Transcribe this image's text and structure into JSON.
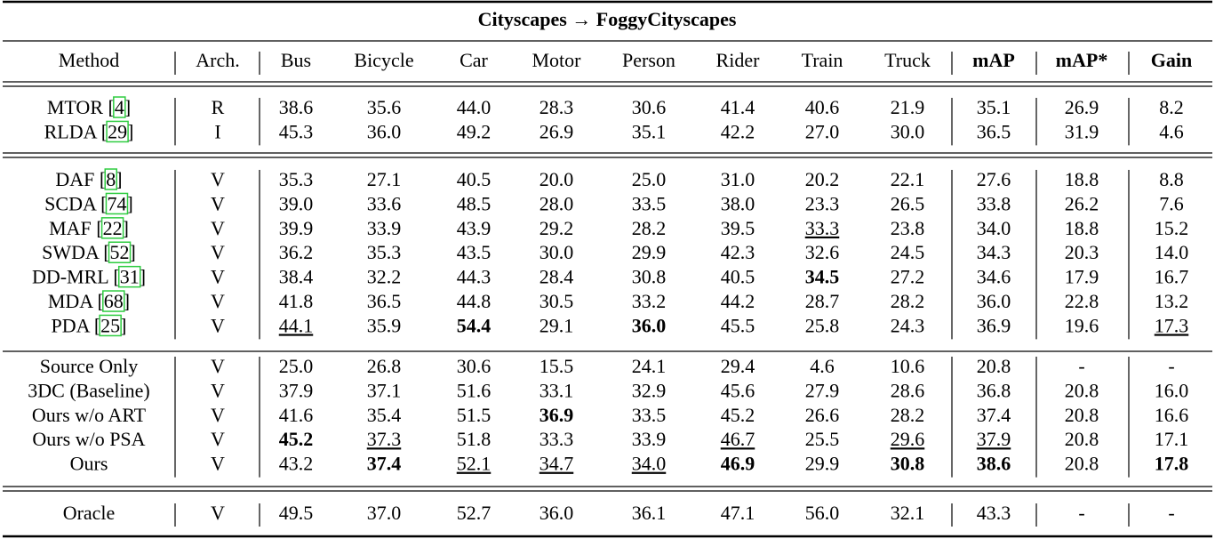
{
  "table": {
    "title": "Cityscapes → FoggyCityscapes",
    "header": [
      "Method",
      "Arch.",
      "Bus",
      "Bicycle",
      "Car",
      "Motor",
      "Person",
      "Rider",
      "Train",
      "Truck",
      "mAP",
      "mAP*",
      "Gain"
    ],
    "header_bold": [
      10,
      11,
      12
    ],
    "groups": [
      [
        {
          "method": "MTOR",
          "ref": "[4]",
          "arch": "R",
          "values": [
            "38.6",
            "35.6",
            "44.0",
            "28.3",
            "30.6",
            "41.4",
            "40.6",
            "21.9",
            "35.1",
            "26.9",
            "8.2"
          ],
          "bold": [],
          "underline": []
        },
        {
          "method": "RLDA",
          "ref": "[29]",
          "arch": "I",
          "values": [
            "45.3",
            "36.0",
            "49.2",
            "26.9",
            "35.1",
            "42.2",
            "27.0",
            "30.0",
            "36.5",
            "31.9",
            "4.6"
          ],
          "bold": [],
          "underline": []
        }
      ],
      [
        {
          "method": "DAF",
          "ref": "[8]",
          "arch": "V",
          "values": [
            "35.3",
            "27.1",
            "40.5",
            "20.0",
            "25.0",
            "31.0",
            "20.2",
            "22.1",
            "27.6",
            "18.8",
            "8.8"
          ],
          "bold": [],
          "underline": []
        },
        {
          "method": "SCDA",
          "ref": "[74]",
          "arch": "V",
          "values": [
            "39.0",
            "33.6",
            "48.5",
            "28.0",
            "33.5",
            "38.0",
            "23.3",
            "26.5",
            "33.8",
            "26.2",
            "7.6"
          ],
          "bold": [],
          "underline": []
        },
        {
          "method": "MAF",
          "ref": "[22]",
          "arch": "V",
          "values": [
            "39.9",
            "33.9",
            "43.9",
            "29.2",
            "28.2",
            "39.5",
            "33.3",
            "23.8",
            "34.0",
            "18.8",
            "15.2"
          ],
          "bold": [],
          "underline": [
            6
          ]
        },
        {
          "method": "SWDA",
          "ref": "[52]",
          "arch": "V",
          "values": [
            "36.2",
            "35.3",
            "43.5",
            "30.0",
            "29.9",
            "42.3",
            "32.6",
            "24.5",
            "34.3",
            "20.3",
            "14.0"
          ],
          "bold": [],
          "underline": []
        },
        {
          "method": "DD-MRL",
          "ref": "[31]",
          "arch": "V",
          "values": [
            "38.4",
            "32.2",
            "44.3",
            "28.4",
            "30.8",
            "40.5",
            "34.5",
            "27.2",
            "34.6",
            "17.9",
            "16.7"
          ],
          "bold": [
            6
          ],
          "underline": []
        },
        {
          "method": "MDA",
          "ref": "[68]",
          "arch": "V",
          "values": [
            "41.8",
            "36.5",
            "44.8",
            "30.5",
            "33.2",
            "44.2",
            "28.7",
            "28.2",
            "36.0",
            "22.8",
            "13.2"
          ],
          "bold": [],
          "underline": []
        },
        {
          "method": "PDA",
          "ref": "[25]",
          "arch": "V",
          "values": [
            "44.1",
            "35.9",
            "54.4",
            "29.1",
            "36.0",
            "45.5",
            "25.8",
            "24.3",
            "36.9",
            "19.6",
            "17.3"
          ],
          "bold": [
            2,
            4
          ],
          "underline": [
            0,
            10
          ]
        }
      ],
      [
        {
          "method": "Source Only",
          "arch": "V",
          "values": [
            "25.0",
            "26.8",
            "30.6",
            "15.5",
            "24.1",
            "29.4",
            "4.6",
            "10.6",
            "20.8",
            "-",
            "-"
          ],
          "bold": [],
          "underline": []
        },
        {
          "method": "3DC (Baseline)",
          "arch": "V",
          "values": [
            "37.9",
            "37.1",
            "51.6",
            "33.1",
            "32.9",
            "45.6",
            "27.9",
            "28.6",
            "36.8",
            "20.8",
            "16.0"
          ],
          "bold": [],
          "underline": []
        },
        {
          "method": "Ours w/o ART",
          "arch": "V",
          "values": [
            "41.6",
            "35.4",
            "51.5",
            "36.9",
            "33.5",
            "45.2",
            "26.6",
            "28.2",
            "37.4",
            "20.8",
            "16.6"
          ],
          "bold": [
            3
          ],
          "underline": []
        },
        {
          "method": "Ours w/o PSA",
          "arch": "V",
          "values": [
            "45.2",
            "37.3",
            "51.8",
            "33.3",
            "33.9",
            "46.7",
            "25.5",
            "29.6",
            "37.9",
            "20.8",
            "17.1"
          ],
          "bold": [
            0
          ],
          "underline": [
            1,
            5,
            7,
            8
          ]
        },
        {
          "method": "Ours",
          "arch": "V",
          "values": [
            "43.2",
            "37.4",
            "52.1",
            "34.7",
            "34.0",
            "46.9",
            "29.9",
            "30.8",
            "38.6",
            "20.8",
            "17.8"
          ],
          "bold": [
            1,
            5,
            7,
            8,
            10
          ],
          "underline": [
            2,
            3,
            4
          ]
        }
      ],
      [
        {
          "method": "Oracle",
          "arch": "V",
          "values": [
            "49.5",
            "37.0",
            "52.7",
            "36.0",
            "36.1",
            "47.1",
            "56.0",
            "32.1",
            "43.3",
            "-",
            "-"
          ],
          "bold": [],
          "underline": []
        }
      ]
    ]
  }
}
